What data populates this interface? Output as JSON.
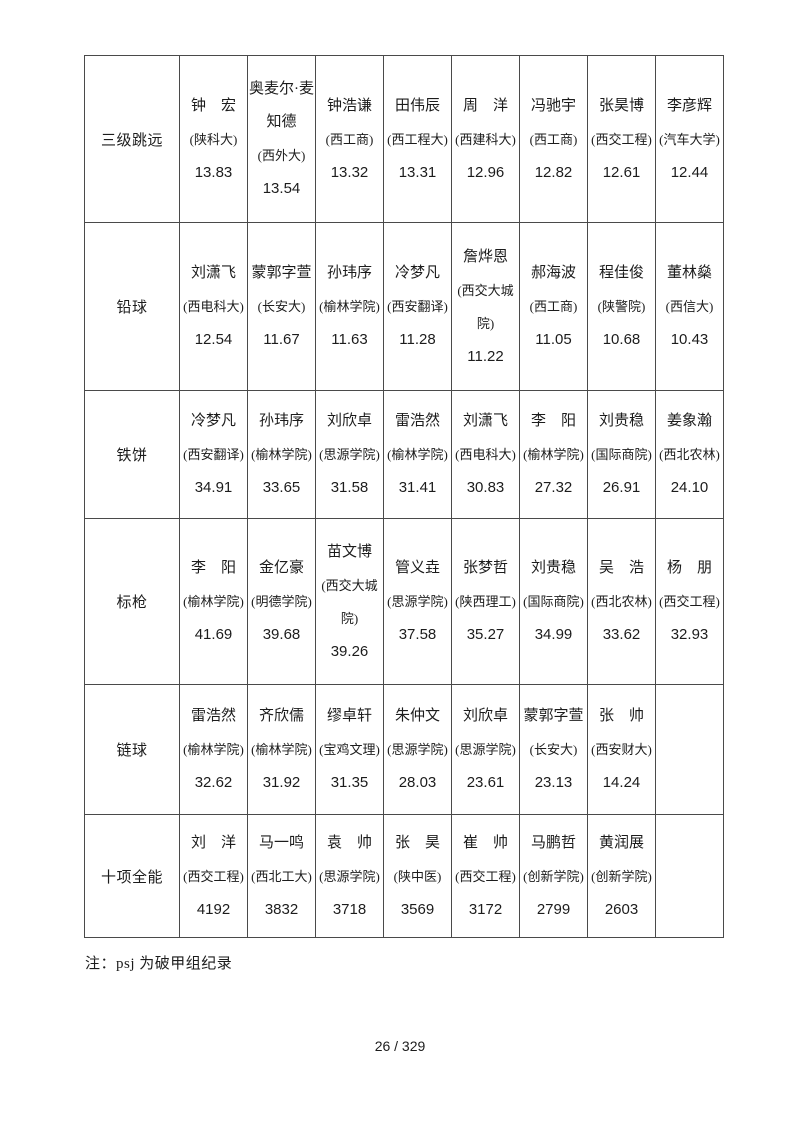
{
  "page": {
    "note": "注：psj 为破甲组纪录",
    "page_number": "26 / 329"
  },
  "table": {
    "rows": [
      {
        "event": "三级跳远",
        "athletes": [
          {
            "name": "钟　宏",
            "school": "(陕科大)",
            "result": "13.83"
          },
          {
            "name": "奥麦尔·麦知德",
            "school": "(西外大)",
            "result": "13.54"
          },
          {
            "name": "钟浩谦",
            "school": "(西工商)",
            "result": "13.32"
          },
          {
            "name": "田伟辰",
            "school": "(西工程大)",
            "result": "13.31"
          },
          {
            "name": "周　洋",
            "school": "(西建科大)",
            "result": "12.96"
          },
          {
            "name": "冯驰宇",
            "school": "(西工商)",
            "result": "12.82"
          },
          {
            "name": "张昊博",
            "school": "(西交工程)",
            "result": "12.61"
          },
          {
            "name": "李彦辉",
            "school": "(汽车大学)",
            "result": "12.44"
          }
        ]
      },
      {
        "event": "铅球",
        "athletes": [
          {
            "name": "刘潇飞",
            "school": "(西电科大)",
            "result": "12.54"
          },
          {
            "name": "蒙郭字萱",
            "school": "(长安大)",
            "result": "11.67"
          },
          {
            "name": "孙玮序",
            "school": "(榆林学院)",
            "result": "11.63"
          },
          {
            "name": "冷梦凡",
            "school": "(西安翻译)",
            "result": "11.28"
          },
          {
            "name": "詹烨恩",
            "school": "(西交大城院)",
            "result": "11.22"
          },
          {
            "name": "郝海波",
            "school": "(西工商)",
            "result": "11.05"
          },
          {
            "name": "程佳俊",
            "school": "(陕警院)",
            "result": "10.68"
          },
          {
            "name": "董林燊",
            "school": "(西信大)",
            "result": "10.43"
          }
        ]
      },
      {
        "event": "铁饼",
        "athletes": [
          {
            "name": "冷梦凡",
            "school": "(西安翻译)",
            "result": "34.91"
          },
          {
            "name": "孙玮序",
            "school": "(榆林学院)",
            "result": "33.65"
          },
          {
            "name": "刘欣卓",
            "school": "(思源学院)",
            "result": "31.58"
          },
          {
            "name": "雷浩然",
            "school": "(榆林学院)",
            "result": "31.41"
          },
          {
            "name": "刘潇飞",
            "school": "(西电科大)",
            "result": "30.83"
          },
          {
            "name": "李　阳",
            "school": "(榆林学院)",
            "result": "27.32"
          },
          {
            "name": "刘贵稳",
            "school": "(国际商院)",
            "result": "26.91"
          },
          {
            "name": "姜象瀚",
            "school": "(西北农林)",
            "result": "24.10"
          }
        ]
      },
      {
        "event": "标枪",
        "athletes": [
          {
            "name": "李　阳",
            "school": "(榆林学院)",
            "result": "41.69"
          },
          {
            "name": "金亿豪",
            "school": "(明德学院)",
            "result": "39.68"
          },
          {
            "name": "苗文博",
            "school": "(西交大城院)",
            "result": "39.26"
          },
          {
            "name": "管义垚",
            "school": "(思源学院)",
            "result": "37.58"
          },
          {
            "name": "张梦哲",
            "school": "(陕西理工)",
            "result": "35.27"
          },
          {
            "name": "刘贵稳",
            "school": "(国际商院)",
            "result": "34.99"
          },
          {
            "name": "吴　浩",
            "school": "(西北农林)",
            "result": "33.62"
          },
          {
            "name": "杨　朋",
            "school": "(西交工程)",
            "result": "32.93"
          }
        ]
      },
      {
        "event": "链球",
        "athletes": [
          {
            "name": "雷浩然",
            "school": "(榆林学院)",
            "result": "32.62"
          },
          {
            "name": "齐欣儒",
            "school": "(榆林学院)",
            "result": "31.92"
          },
          {
            "name": "缪卓轩",
            "school": "(宝鸡文理)",
            "result": "31.35"
          },
          {
            "name": "朱仲文",
            "school": "(思源学院)",
            "result": "28.03"
          },
          {
            "name": "刘欣卓",
            "school": "(思源学院)",
            "result": "23.61"
          },
          {
            "name": "蒙郭字萱",
            "school": "(长安大)",
            "result": "23.13"
          },
          {
            "name": "张　帅",
            "school": "(西安财大)",
            "result": "14.24"
          },
          null
        ]
      },
      {
        "event": "十项全能",
        "athletes": [
          {
            "name": "刘　洋",
            "school": "(西交工程)",
            "result": "4192"
          },
          {
            "name": "马一鸣",
            "school": "(西北工大)",
            "result": "3832"
          },
          {
            "name": "袁　帅",
            "school": "(思源学院)",
            "result": "3718"
          },
          {
            "name": "张　昊",
            "school": "(陕中医)",
            "result": "3569"
          },
          {
            "name": "崔　帅",
            "school": "(西交工程)",
            "result": "3172"
          },
          {
            "name": "马鹏哲",
            "school": "(创新学院)",
            "result": "2799"
          },
          {
            "name": "黄润展",
            "school": "(创新学院)",
            "result": "2603"
          },
          null
        ]
      }
    ]
  }
}
